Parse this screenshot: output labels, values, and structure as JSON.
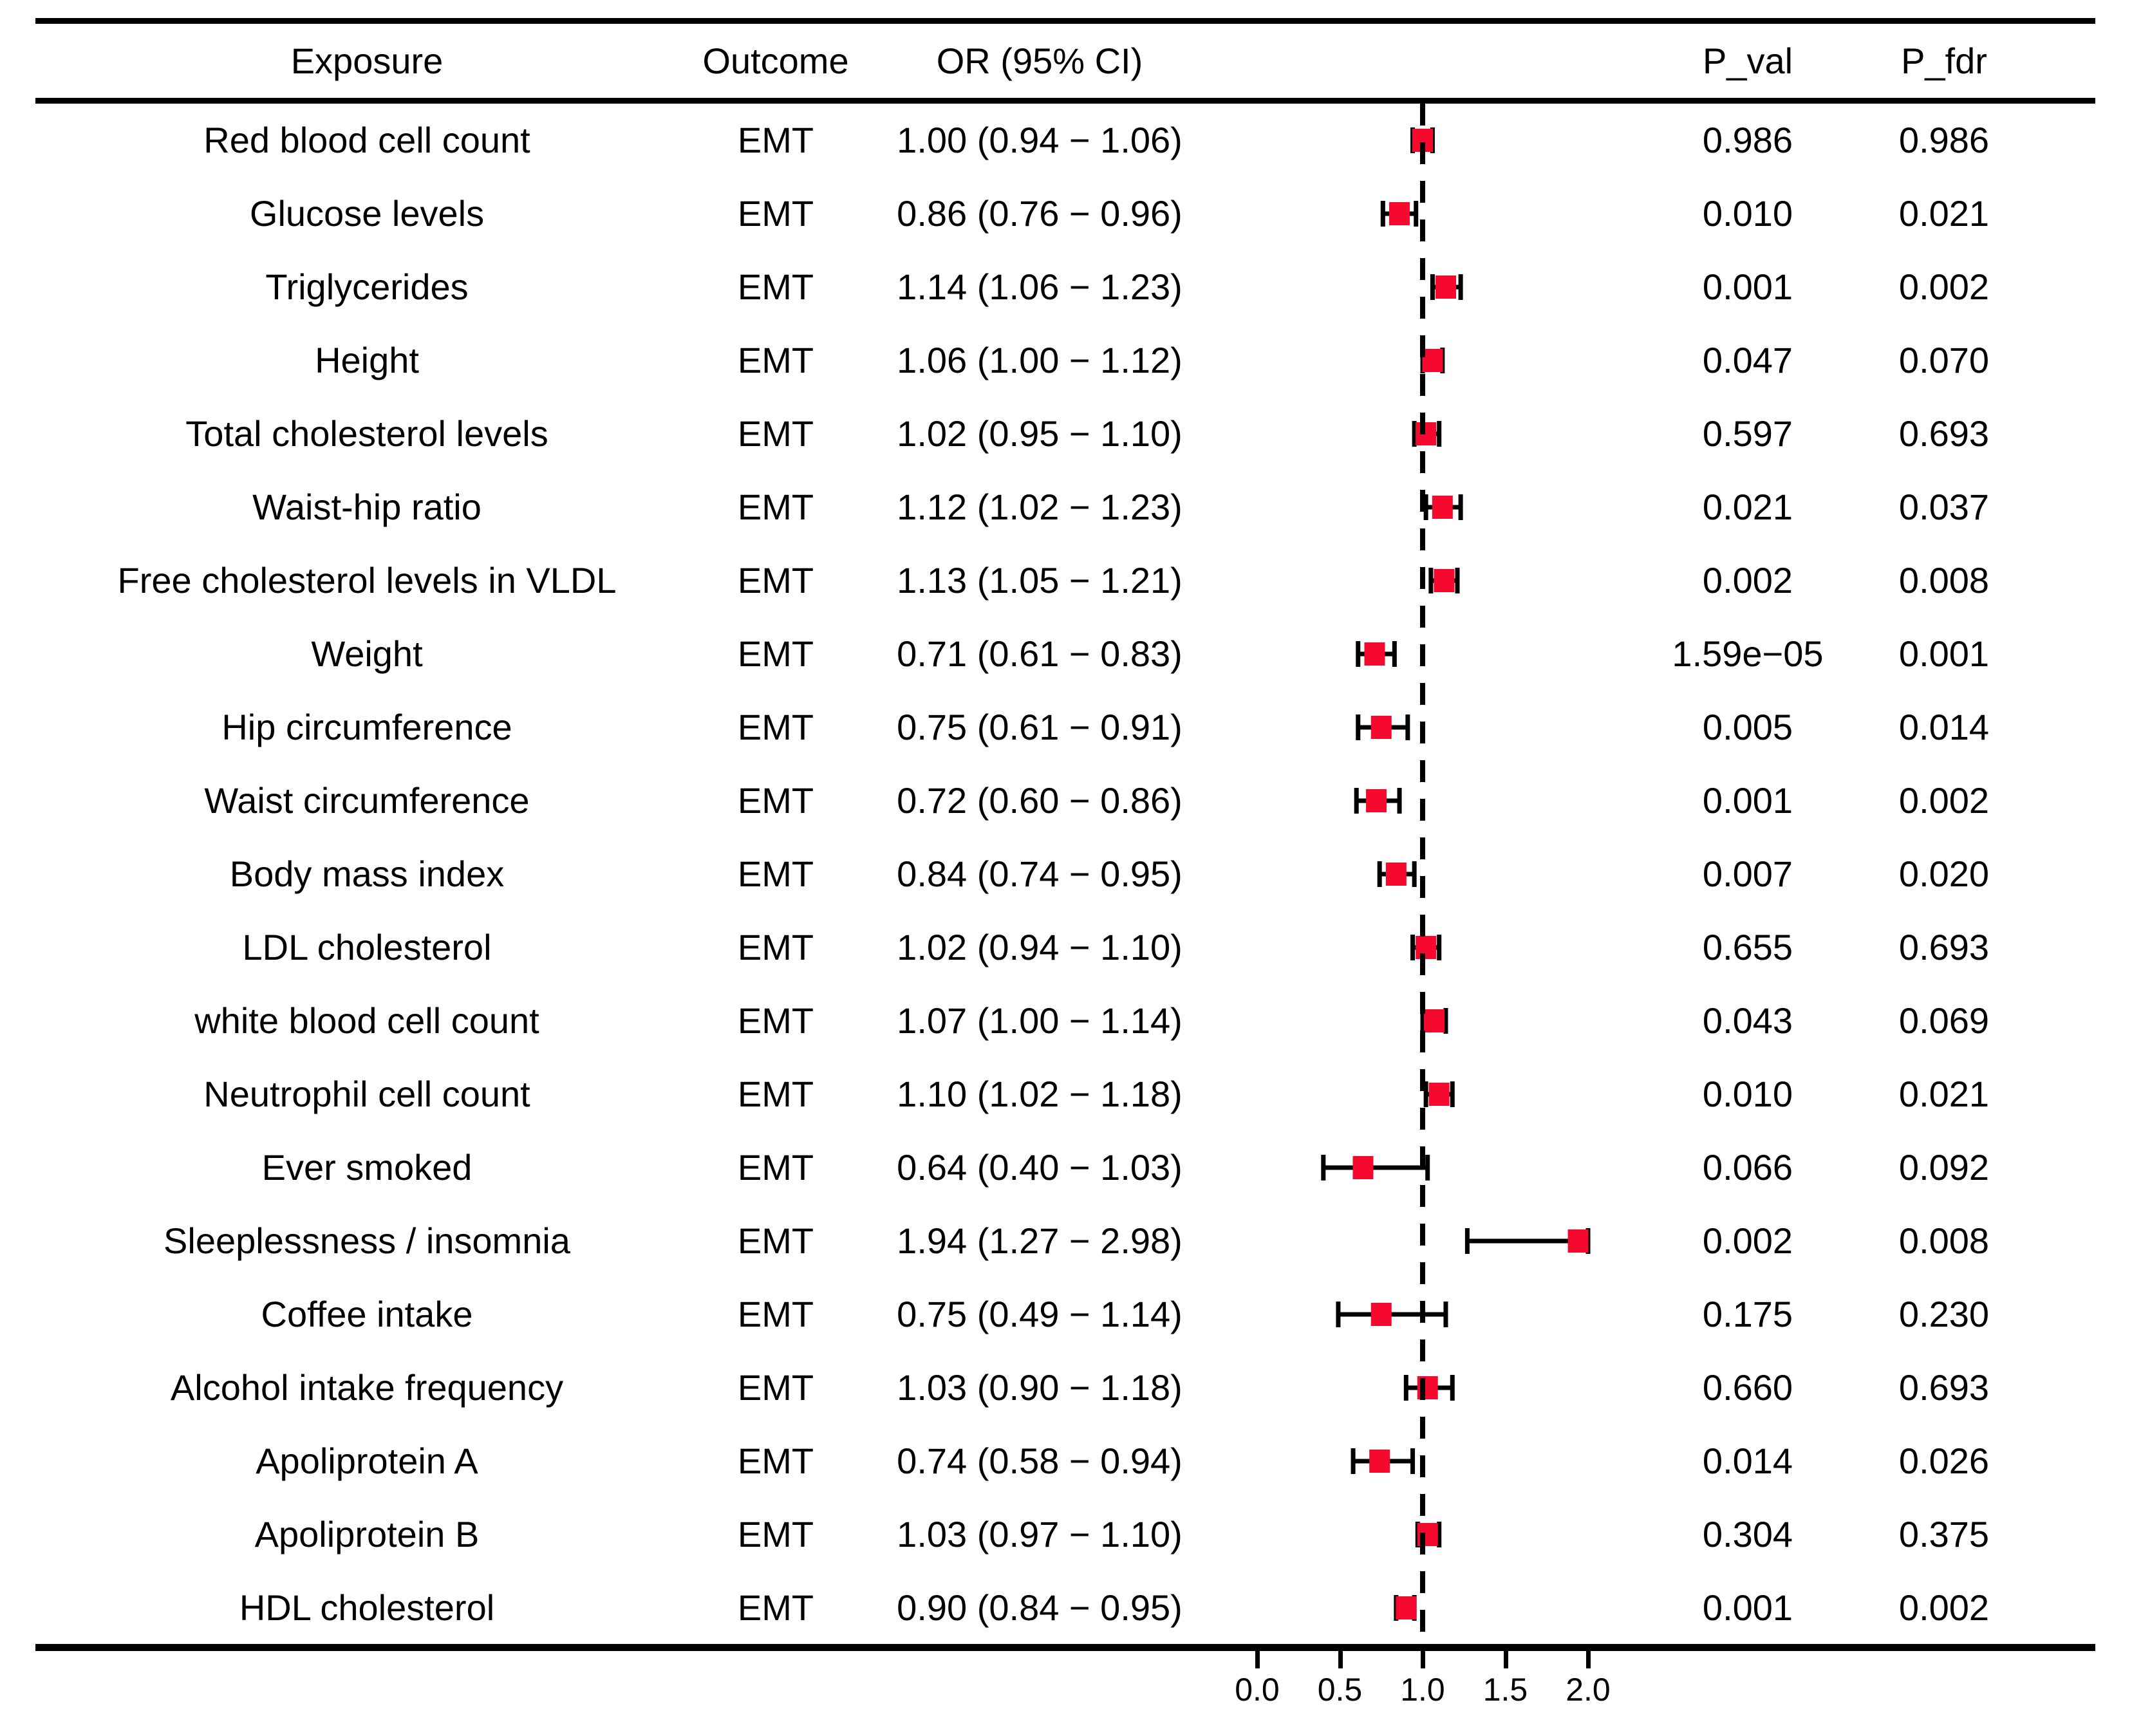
{
  "figure": {
    "background": "#ffffff"
  },
  "chart_data": {
    "type": "scatter",
    "subtype": "forest-plot",
    "title": "",
    "columns": [
      "Exposure",
      "Outcome",
      "OR (95% CI)",
      "P_val",
      "P_fdr"
    ],
    "x_axis": {
      "tick_labels": [
        "0.0",
        "0.5",
        "1.0",
        "1.5",
        "2.0"
      ],
      "tick_values": [
        0.0,
        0.5,
        1.0,
        1.5,
        2.0
      ],
      "range_shown": [
        0.0,
        2.0
      ],
      "reference_line": 1.0,
      "clip_max": 2.0,
      "grid": "off",
      "legend": "none"
    },
    "marker": {
      "shape": "square",
      "color": "#f50a2d",
      "error_bar_color": "#000000"
    },
    "rows": [
      {
        "exposure": "Red blood cell count",
        "outcome": "EMT",
        "or_ci": "1.00 (0.94 − 1.06)",
        "or": 1.0,
        "ci_low": 0.94,
        "ci_high": 1.06,
        "p_val": "0.986",
        "p_fdr": "0.986"
      },
      {
        "exposure": "Glucose levels",
        "outcome": "EMT",
        "or_ci": "0.86 (0.76 − 0.96)",
        "or": 0.86,
        "ci_low": 0.76,
        "ci_high": 0.96,
        "p_val": "0.010",
        "p_fdr": "0.021"
      },
      {
        "exposure": "Triglycerides",
        "outcome": "EMT",
        "or_ci": "1.14 (1.06 − 1.23)",
        "or": 1.14,
        "ci_low": 1.06,
        "ci_high": 1.23,
        "p_val": "0.001",
        "p_fdr": "0.002"
      },
      {
        "exposure": "Height",
        "outcome": "EMT",
        "or_ci": "1.06 (1.00 − 1.12)",
        "or": 1.06,
        "ci_low": 1.0,
        "ci_high": 1.12,
        "p_val": "0.047",
        "p_fdr": "0.070"
      },
      {
        "exposure": "Total cholesterol levels",
        "outcome": "EMT",
        "or_ci": "1.02 (0.95 − 1.10)",
        "or": 1.02,
        "ci_low": 0.95,
        "ci_high": 1.1,
        "p_val": "0.597",
        "p_fdr": "0.693"
      },
      {
        "exposure": "Waist-hip ratio",
        "outcome": "EMT",
        "or_ci": "1.12 (1.02 − 1.23)",
        "or": 1.12,
        "ci_low": 1.02,
        "ci_high": 1.23,
        "p_val": "0.021",
        "p_fdr": "0.037"
      },
      {
        "exposure": "Free cholesterol levels in VLDL",
        "outcome": "EMT",
        "or_ci": "1.13 (1.05 − 1.21)",
        "or": 1.13,
        "ci_low": 1.05,
        "ci_high": 1.21,
        "p_val": "0.002",
        "p_fdr": "0.008"
      },
      {
        "exposure": "Weight",
        "outcome": "EMT",
        "or_ci": "0.71 (0.61 − 0.83)",
        "or": 0.71,
        "ci_low": 0.61,
        "ci_high": 0.83,
        "p_val": "1.59e−05",
        "p_fdr": "0.001"
      },
      {
        "exposure": "Hip circumference",
        "outcome": "EMT",
        "or_ci": "0.75 (0.61 − 0.91)",
        "or": 0.75,
        "ci_low": 0.61,
        "ci_high": 0.91,
        "p_val": "0.005",
        "p_fdr": "0.014"
      },
      {
        "exposure": "Waist circumference",
        "outcome": "EMT",
        "or_ci": "0.72 (0.60 − 0.86)",
        "or": 0.72,
        "ci_low": 0.6,
        "ci_high": 0.86,
        "p_val": "0.001",
        "p_fdr": "0.002"
      },
      {
        "exposure": "Body mass index",
        "outcome": "EMT",
        "or_ci": "0.84 (0.74 − 0.95)",
        "or": 0.84,
        "ci_low": 0.74,
        "ci_high": 0.95,
        "p_val": "0.007",
        "p_fdr": "0.020"
      },
      {
        "exposure": "LDL cholesterol",
        "outcome": "EMT",
        "or_ci": "1.02 (0.94 − 1.10)",
        "or": 1.02,
        "ci_low": 0.94,
        "ci_high": 1.1,
        "p_val": "0.655",
        "p_fdr": "0.693"
      },
      {
        "exposure": "white blood cell count",
        "outcome": "EMT",
        "or_ci": "1.07 (1.00 − 1.14)",
        "or": 1.07,
        "ci_low": 1.0,
        "ci_high": 1.14,
        "p_val": "0.043",
        "p_fdr": "0.069"
      },
      {
        "exposure": "Neutrophil cell count",
        "outcome": "EMT",
        "or_ci": "1.10 (1.02 − 1.18)",
        "or": 1.1,
        "ci_low": 1.02,
        "ci_high": 1.18,
        "p_val": "0.010",
        "p_fdr": "0.021"
      },
      {
        "exposure": "Ever smoked",
        "outcome": "EMT",
        "or_ci": "0.64 (0.40 − 1.03)",
        "or": 0.64,
        "ci_low": 0.4,
        "ci_high": 1.03,
        "p_val": "0.066",
        "p_fdr": "0.092"
      },
      {
        "exposure": "Sleeplessness / insomnia",
        "outcome": "EMT",
        "or_ci": "1.94 (1.27 − 2.98)",
        "or": 1.94,
        "ci_low": 1.27,
        "ci_high": 2.98,
        "p_val": "0.002",
        "p_fdr": "0.008"
      },
      {
        "exposure": "Coffee intake",
        "outcome": "EMT",
        "or_ci": "0.75 (0.49 − 1.14)",
        "or": 0.75,
        "ci_low": 0.49,
        "ci_high": 1.14,
        "p_val": "0.175",
        "p_fdr": "0.230"
      },
      {
        "exposure": "Alcohol intake frequency",
        "outcome": "EMT",
        "or_ci": "1.03 (0.90 − 1.18)",
        "or": 1.03,
        "ci_low": 0.9,
        "ci_high": 1.18,
        "p_val": "0.660",
        "p_fdr": "0.693"
      },
      {
        "exposure": "Apoliprotein A",
        "outcome": "EMT",
        "or_ci": "0.74 (0.58 − 0.94)",
        "or": 0.74,
        "ci_low": 0.58,
        "ci_high": 0.94,
        "p_val": "0.014",
        "p_fdr": "0.026"
      },
      {
        "exposure": "Apoliprotein B",
        "outcome": "EMT",
        "or_ci": "1.03 (0.97 − 1.10)",
        "or": 1.03,
        "ci_low": 0.97,
        "ci_high": 1.1,
        "p_val": "0.304",
        "p_fdr": "0.375"
      },
      {
        "exposure": "HDL cholesterol",
        "outcome": "EMT",
        "or_ci": "0.90 (0.84 − 0.95)",
        "or": 0.9,
        "ci_low": 0.84,
        "ci_high": 0.95,
        "p_val": "0.001",
        "p_fdr": "0.002"
      }
    ]
  }
}
